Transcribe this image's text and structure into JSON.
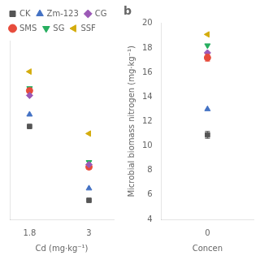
{
  "chart_data": [
    {
      "type": "scatter",
      "xlabel": "Cd (mg·kg⁻¹)",
      "xlim": [
        1.4,
        3.5
      ],
      "xticks": [
        1.8,
        3
      ],
      "ylim": [
        4,
        11.5
      ],
      "tick_labels": "x",
      "grid": false,
      "legend": "top",
      "series": [
        {
          "name": "CK",
          "color": "#555555",
          "marker": "square",
          "x": [
            1.8,
            3
          ],
          "values": [
            7.9,
            4.8
          ]
        },
        {
          "name": "Zm-123",
          "color": "#4472C4",
          "marker": "triangle-up",
          "x": [
            1.8,
            3
          ],
          "values": [
            8.4,
            5.3
          ]
        },
        {
          "name": "CG",
          "color": "#9B59B6",
          "marker": "diamond",
          "x": [
            1.8,
            3
          ],
          "values": [
            9.2,
            6.3
          ]
        },
        {
          "name": "SMS",
          "color": "#E74C3C",
          "marker": "circle",
          "x": [
            1.8,
            3
          ],
          "values": [
            9.4,
            6.2
          ]
        },
        {
          "name": "SG",
          "color": "#27AE60",
          "marker": "triangle-down",
          "x": [
            1.8,
            3
          ],
          "values": [
            9.5,
            6.4
          ]
        },
        {
          "name": "SSF",
          "color": "#D4AC0D",
          "marker": "triangle-left",
          "x": [
            1.8,
            3
          ],
          "values": [
            10.2,
            7.6
          ]
        }
      ]
    },
    {
      "type": "scatter",
      "title": "b",
      "xlabel": "Concen",
      "ylabel": "Microbial biomass nitrogen (mg·kg⁻¹)",
      "xlim": [
        -0.7,
        0.7
      ],
      "xticks": [
        0
      ],
      "ylim": [
        4,
        20
      ],
      "yticks": [
        4,
        6,
        8,
        10,
        12,
        14,
        16,
        18,
        20
      ],
      "grid": false,
      "series": [
        {
          "name": "CK",
          "color": "#555555",
          "marker": "square",
          "x": [
            0
          ],
          "values": [
            10.9
          ],
          "yerr": [
            0.28
          ]
        },
        {
          "name": "Zm-123",
          "color": "#4472C4",
          "marker": "triangle-up",
          "x": [
            0
          ],
          "values": [
            13.0
          ]
        },
        {
          "name": "SMS",
          "color": "#E74C3C",
          "marker": "circle",
          "x": [
            0
          ],
          "values": [
            17.2
          ],
          "yerr": [
            0.28
          ]
        },
        {
          "name": "CG",
          "color": "#9B59B6",
          "marker": "diamond",
          "x": [
            0
          ],
          "values": [
            17.6
          ]
        },
        {
          "name": "SG",
          "color": "#27AE60",
          "marker": "triangle-down",
          "x": [
            0
          ],
          "values": [
            18.2
          ]
        },
        {
          "name": "SSF",
          "color": "#D4AC0D",
          "marker": "triangle-left",
          "x": [
            0
          ],
          "values": [
            19.1
          ]
        }
      ]
    }
  ]
}
